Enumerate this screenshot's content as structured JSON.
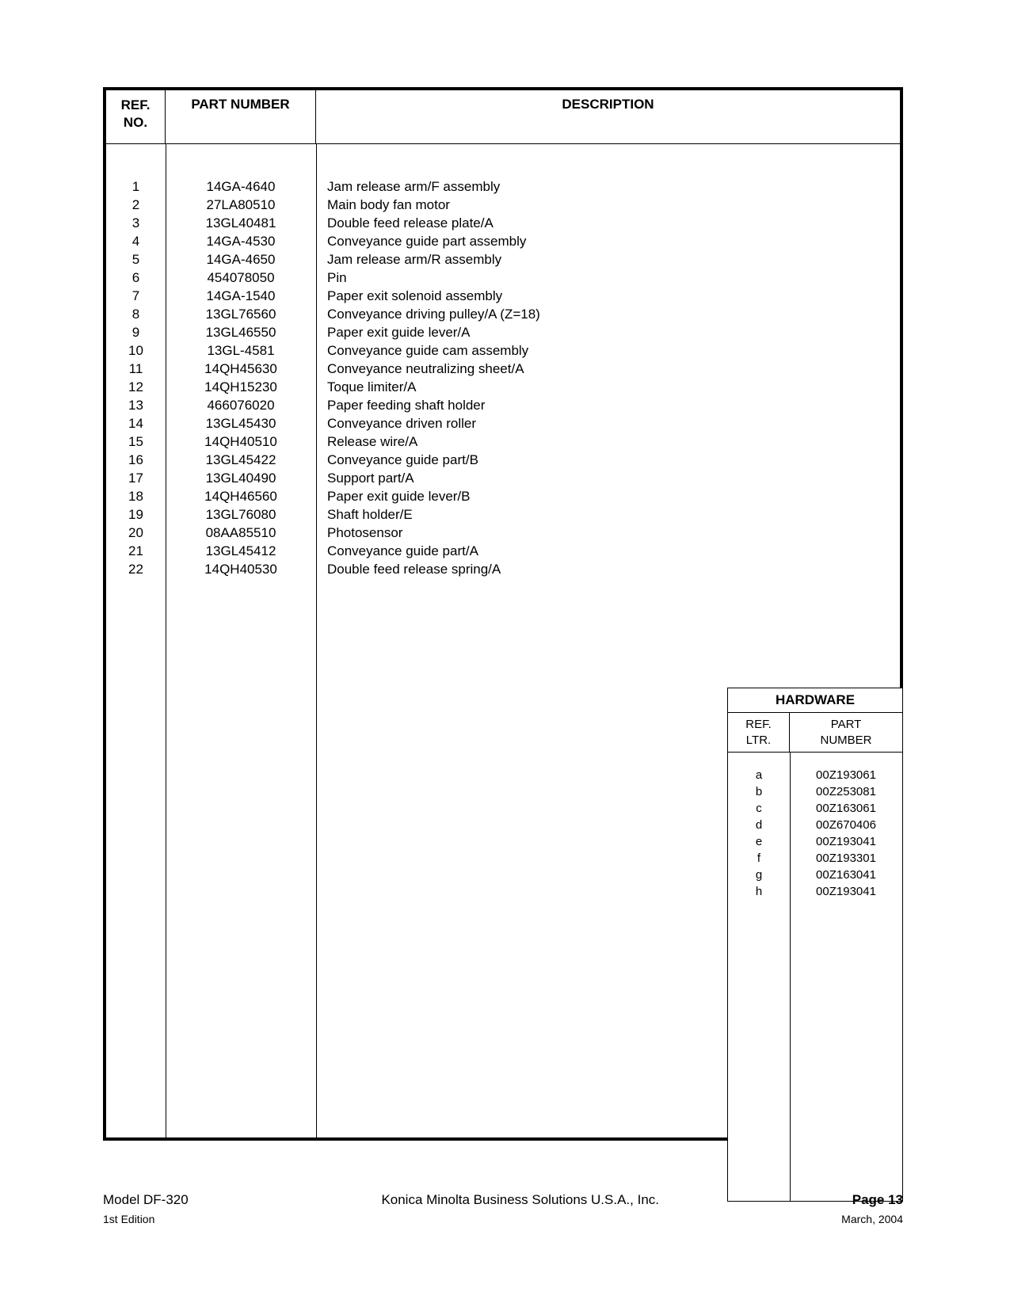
{
  "headers": {
    "ref_no_line1": "REF.",
    "ref_no_line2": "NO.",
    "part_number": "PART NUMBER",
    "description": "DESCRIPTION"
  },
  "parts": [
    {
      "ref": "1",
      "pn": "14GA-4640",
      "desc": "Jam release arm/F assembly"
    },
    {
      "ref": "2",
      "pn": "27LA80510",
      "desc": "Main body fan motor"
    },
    {
      "ref": "3",
      "pn": "13GL40481",
      "desc": "Double feed release plate/A"
    },
    {
      "ref": "4",
      "pn": "14GA-4530",
      "desc": "Conveyance guide part assembly"
    },
    {
      "ref": "5",
      "pn": "14GA-4650",
      "desc": "Jam release arm/R assembly"
    },
    {
      "ref": "6",
      "pn": "454078050",
      "desc": "Pin"
    },
    {
      "ref": "7",
      "pn": "14GA-1540",
      "desc": "Paper exit solenoid assembly"
    },
    {
      "ref": "8",
      "pn": "13GL76560",
      "desc": "Conveyance driving pulley/A (Z=18)"
    },
    {
      "ref": "9",
      "pn": "13GL46550",
      "desc": "Paper exit guide lever/A"
    },
    {
      "ref": "10",
      "pn": "13GL-4581",
      "desc": "Conveyance guide cam assembly"
    },
    {
      "ref": "11",
      "pn": "14QH45630",
      "desc": "Conveyance neutralizing sheet/A"
    },
    {
      "ref": "12",
      "pn": "14QH15230",
      "desc": "Toque limiter/A"
    },
    {
      "ref": "13",
      "pn": "466076020",
      "desc": "Paper feeding shaft holder"
    },
    {
      "ref": "14",
      "pn": "13GL45430",
      "desc": "Conveyance driven roller"
    },
    {
      "ref": "15",
      "pn": "14QH40510",
      "desc": "Release wire/A"
    },
    {
      "ref": "16",
      "pn": "13GL45422",
      "desc": "Conveyance guide part/B"
    },
    {
      "ref": "17",
      "pn": "13GL40490",
      "desc": "Support part/A"
    },
    {
      "ref": "18",
      "pn": "14QH46560",
      "desc": "Paper exit guide lever/B"
    },
    {
      "ref": "19",
      "pn": "13GL76080",
      "desc": "Shaft holder/E"
    },
    {
      "ref": "20",
      "pn": "08AA85510",
      "desc": "Photosensor"
    },
    {
      "ref": "21",
      "pn": "13GL45412",
      "desc": "Conveyance guide part/A"
    },
    {
      "ref": "22",
      "pn": "14QH40530",
      "desc": "Double feed release spring/A"
    }
  ],
  "hardware": {
    "title": "HARDWARE",
    "head_col1_line1": "REF.",
    "head_col1_line2": "LTR.",
    "head_col2_line1": "PART",
    "head_col2_line2": "NUMBER",
    "rows": [
      {
        "ltr": "a",
        "pn": "00Z193061"
      },
      {
        "ltr": "b",
        "pn": "00Z253081"
      },
      {
        "ltr": "c",
        "pn": "00Z163061"
      },
      {
        "ltr": "d",
        "pn": "00Z670406"
      },
      {
        "ltr": "e",
        "pn": "00Z193041"
      },
      {
        "ltr": "f",
        "pn": "00Z193301"
      },
      {
        "ltr": "g",
        "pn": "00Z163041"
      },
      {
        "ltr": "h",
        "pn": "00Z193041"
      }
    ]
  },
  "footer": {
    "model": "Model DF-320",
    "company": "Konica Minolta Business Solutions U.S.A., Inc.",
    "page_label": "Page 13",
    "edition": "1st Edition",
    "date": "March, 2004"
  }
}
